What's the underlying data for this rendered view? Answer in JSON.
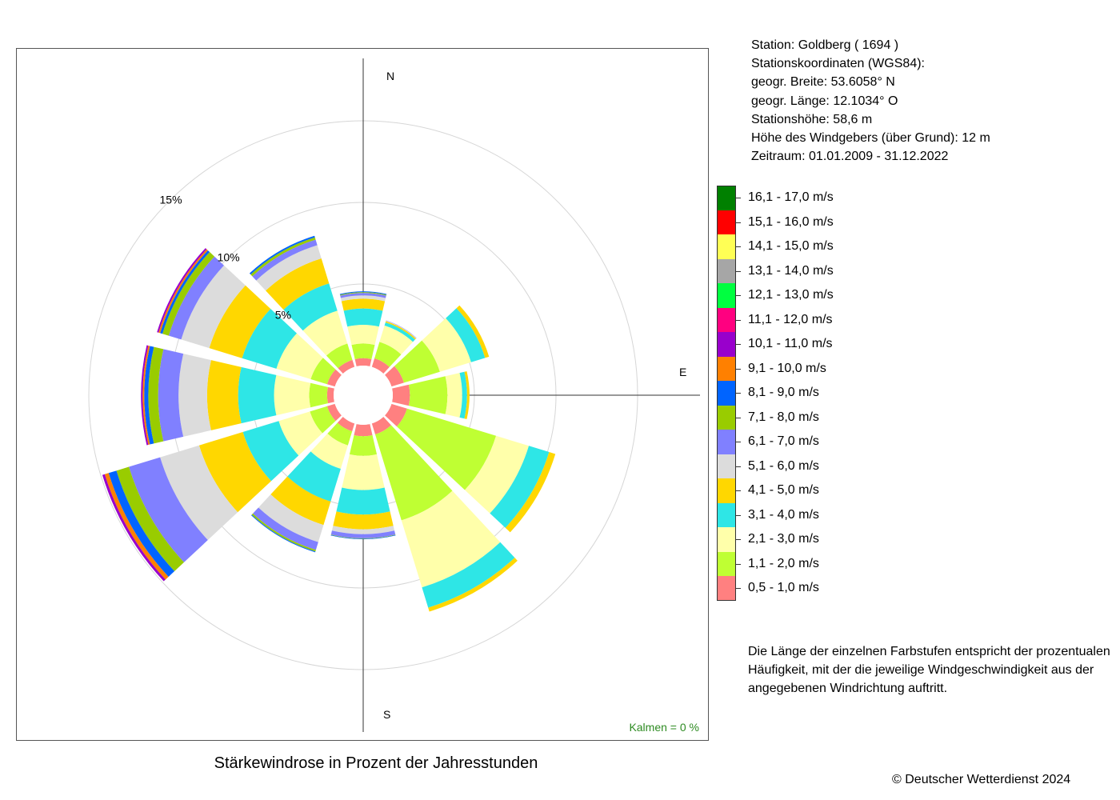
{
  "station": {
    "line1": "Station:  Goldberg  ( 1694 )",
    "line2": "Stationskoordinaten (WGS84):",
    "line3": "geogr. Breite: 53.6058° N",
    "line4": "geogr. Länge: 12.1034° O",
    "line5": "Stationshöhe: 58,6 m",
    "line6": "Höhe des Windgebers (über Grund): 12 m",
    "line7": "Zeitraum: 01.01.2009 - 31.12.2022"
  },
  "note": "Die Länge der einzelnen Farbstufen entspricht der prozentualen Häufigkeit, mit der die jeweilige Windgeschwindigkeit aus der angegebenen Windrichtung auftritt.",
  "copyright": "© Deutscher Wetterdienst  2024",
  "chart_data": {
    "type": "wind-rose",
    "title": "Stärkewindrose in Prozent der Jahresstunden",
    "calms_label": "Kalmen  =  0 %",
    "compass_labels": {
      "n": "N",
      "e": "E",
      "s": "S"
    },
    "rings": [
      {
        "value": 5,
        "label": "5%"
      },
      {
        "value": 10,
        "label": "10%"
      },
      {
        "value": 15,
        "label": "15%"
      }
    ],
    "bins": [
      {
        "label": "0,5 - 1,0 m/s",
        "color": "#FF8080"
      },
      {
        "label": "1,1 - 2,0 m/s",
        "color": "#BFFF33"
      },
      {
        "label": "2,1 - 3,0 m/s",
        "color": "#FFFFAA"
      },
      {
        "label": "3,1 - 4,0 m/s",
        "color": "#2EE6E6"
      },
      {
        "label": "4,1 - 5,0 m/s",
        "color": "#FFD700"
      },
      {
        "label": "5,1 - 6,0 m/s",
        "color": "#DCDCDC"
      },
      {
        "label": "6,1 - 7,0 m/s",
        "color": "#8080FF"
      },
      {
        "label": "7,1 - 8,0 m/s",
        "color": "#99CC00"
      },
      {
        "label": "8,1 - 9,0 m/s",
        "color": "#0064FF"
      },
      {
        "label": "9,1 - 10,0 m/s",
        "color": "#FF8000"
      },
      {
        "label": "10,1 - 11,0 m/s",
        "color": "#9900CC"
      },
      {
        "label": "11,1 - 12,0 m/s",
        "color": "#FF0080"
      },
      {
        "label": "12,1 - 13,0 m/s",
        "color": "#00FF40"
      },
      {
        "label": "13,1 - 14,0 m/s",
        "color": "#A6A6A6"
      },
      {
        "label": "14,1 - 15,0 m/s",
        "color": "#FFFF55"
      },
      {
        "label": "15,1 - 16,0 m/s",
        "color": "#FF0000"
      },
      {
        "label": "16,1 - 17,0 m/s",
        "color": "#008000"
      }
    ],
    "directions": [
      {
        "deg": 0,
        "values": [
          0.45,
          0.9,
          1.15,
          1.0,
          0.6,
          0.2,
          0.15,
          0.05,
          0.05
        ]
      },
      {
        "deg": 30,
        "values": [
          0.55,
          1.05,
          1.05,
          0.2,
          0.08,
          0.03,
          0.02
        ]
      },
      {
        "deg": 60,
        "values": [
          0.8,
          2.3,
          2.0,
          0.9,
          0.25
        ]
      },
      {
        "deg": 90,
        "values": [
          1.05,
          2.3,
          0.9,
          0.3,
          0.15
        ]
      },
      {
        "deg": 120,
        "values": [
          1.0,
          5.7,
          2.1,
          1.3,
          0.4
        ]
      },
      {
        "deg": 150,
        "values": [
          0.7,
          5.5,
          4.3,
          1.3,
          0.25
        ]
      },
      {
        "deg": 180,
        "values": [
          0.7,
          1.2,
          2.1,
          1.5,
          0.9,
          0.3,
          0.25,
          0.03,
          0.03
        ]
      },
      {
        "deg": 210,
        "values": [
          0.5,
          0.9,
          1.5,
          2.1,
          1.5,
          1.1,
          0.5,
          0.1,
          0.05
        ]
      },
      {
        "deg": 240,
        "values": [
          0.5,
          1.1,
          2.0,
          2.3,
          2.8,
          2.5,
          2.0,
          0.8,
          0.5,
          0.25,
          0.15
        ]
      },
      {
        "deg": 270,
        "values": [
          0.4,
          1.1,
          2.15,
          2.2,
          1.9,
          1.75,
          1.25,
          0.6,
          0.25,
          0.1,
          0.1
        ]
      },
      {
        "deg": 300,
        "values": [
          0.5,
          1.05,
          2.2,
          2.2,
          2.1,
          1.8,
          0.8,
          0.4,
          0.15,
          0.1,
          0.1
        ]
      },
      {
        "deg": 330,
        "values": [
          0.45,
          1.05,
          2.1,
          1.75,
          1.6,
          0.85,
          0.35,
          0.15,
          0.1
        ]
      }
    ]
  }
}
